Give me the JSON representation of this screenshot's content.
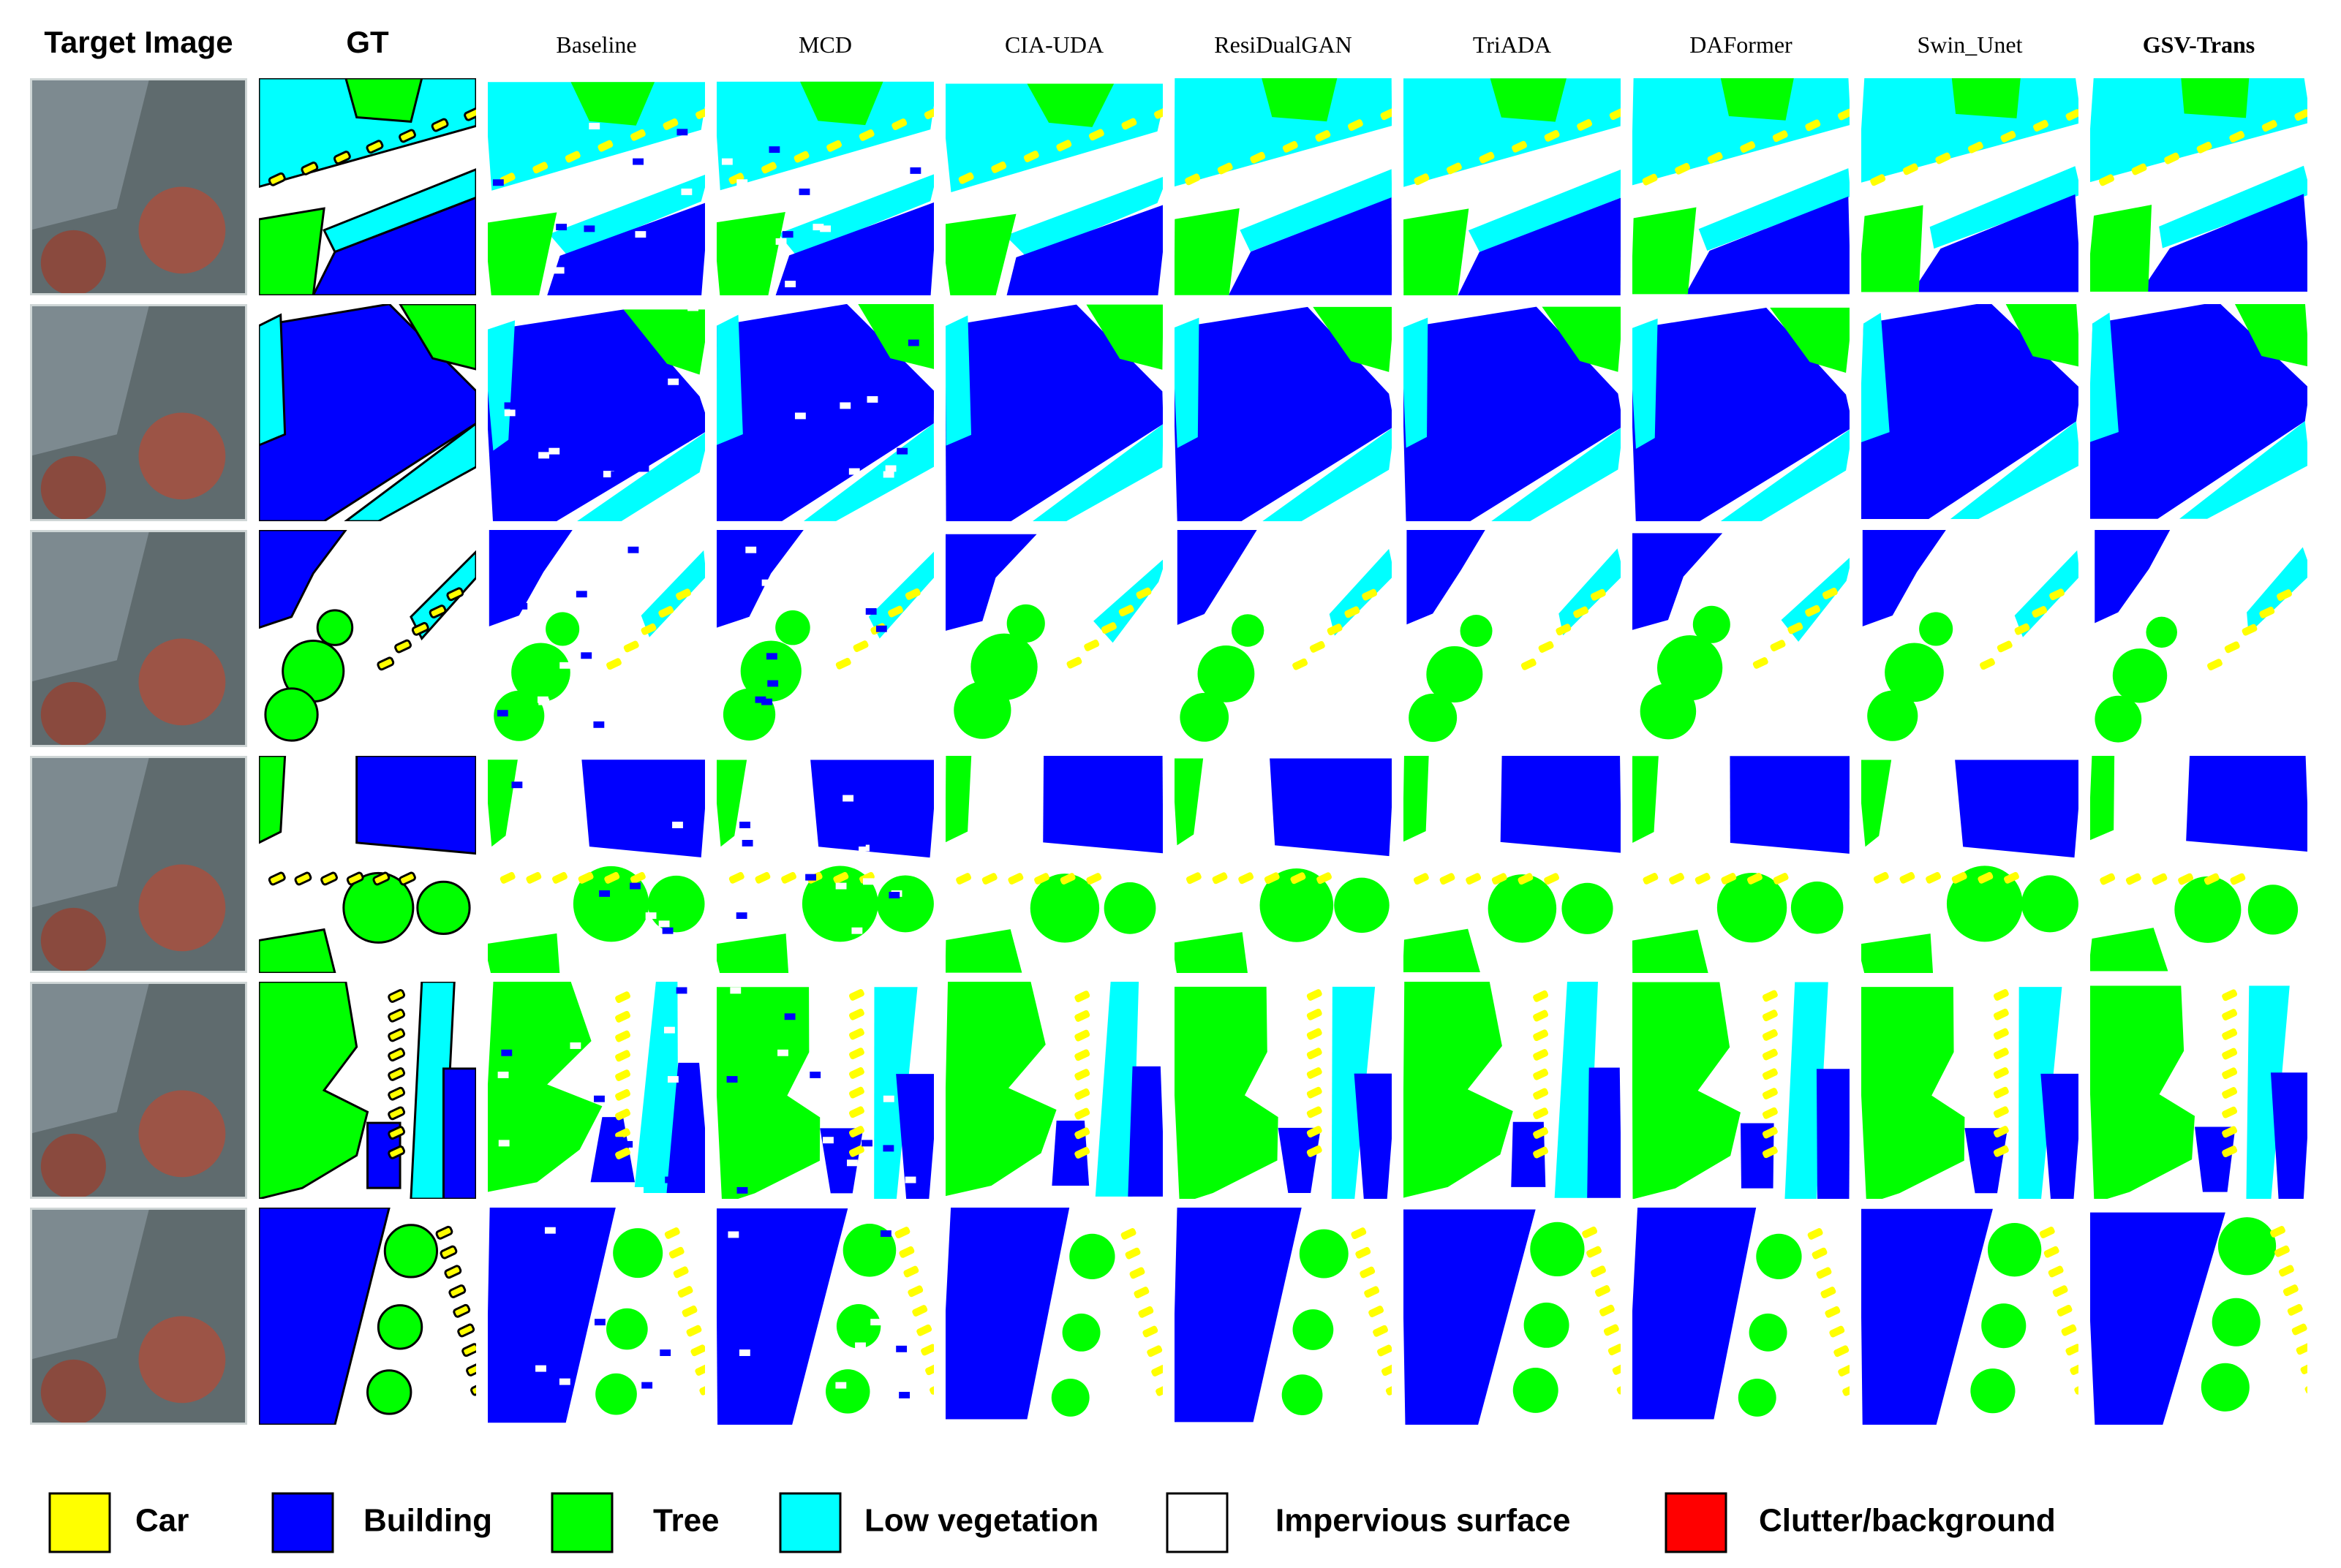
{
  "columns": [
    "Target Image",
    "GT",
    "Baseline",
    "MCD",
    "CIA-UDA",
    "ResiDualGAN",
    "TriADA",
    "DAFormer",
    "Swin_Unet",
    "GSV-Trans"
  ],
  "legend": [
    {
      "label": "Car",
      "color": "#ffff00"
    },
    {
      "label": "Building",
      "color": "#0000ff"
    },
    {
      "label": "Tree",
      "color": "#00ff00"
    },
    {
      "label": "Low vegetation",
      "color": "#00ffff"
    },
    {
      "label": "Impervious surface",
      "color": "#ffffff"
    },
    {
      "label": "Clutter/background",
      "color": "#ff0000"
    }
  ]
}
